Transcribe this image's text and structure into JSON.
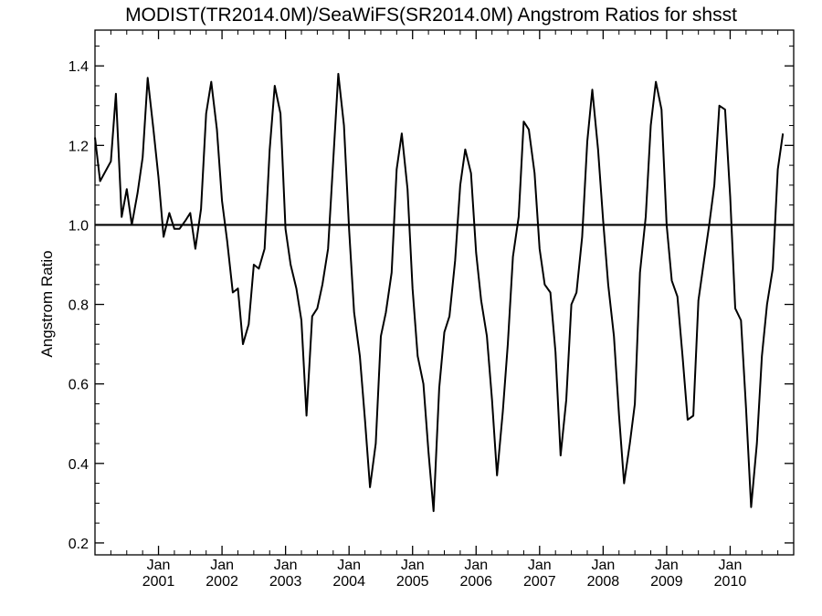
{
  "chart_data": {
    "type": "line",
    "title": "MODIST(TR2014.0M)/SeaWiFS(SR2014.0M)  Angstrom Ratios for shsst",
    "xlabel": "",
    "ylabel": "Angstrom Ratio",
    "ylim": [
      0.17,
      1.49
    ],
    "xlim": [
      2000.0,
      2011.0
    ],
    "grid": false,
    "reference_line": 1.0,
    "y_ticks": [
      "0.2",
      "0.4",
      "0.6",
      "0.8",
      "1.0",
      "1.2",
      "1.4"
    ],
    "x_ticks": [
      {
        "month": "Jan",
        "year": "2001"
      },
      {
        "month": "Jan",
        "year": "2002"
      },
      {
        "month": "Jan",
        "year": "2003"
      },
      {
        "month": "Jan",
        "year": "2004"
      },
      {
        "month": "Jan",
        "year": "2005"
      },
      {
        "month": "Jan",
        "year": "2006"
      },
      {
        "month": "Jan",
        "year": "2007"
      },
      {
        "month": "Jan",
        "year": "2008"
      },
      {
        "month": "Jan",
        "year": "2009"
      },
      {
        "month": "Jan",
        "year": "2010"
      }
    ],
    "series": [
      {
        "color": "#000000",
        "points": [
          [
            2000.0,
            1.22
          ],
          [
            2000.08,
            1.11
          ],
          [
            2000.25,
            1.16
          ],
          [
            2000.33,
            1.33
          ],
          [
            2000.42,
            1.02
          ],
          [
            2000.5,
            1.09
          ],
          [
            2000.58,
            1.0
          ],
          [
            2000.67,
            1.08
          ],
          [
            2000.75,
            1.17
          ],
          [
            2000.83,
            1.37
          ],
          [
            2000.92,
            1.24
          ],
          [
            2001.0,
            1.12
          ],
          [
            2001.08,
            0.97
          ],
          [
            2001.17,
            1.03
          ],
          [
            2001.25,
            0.99
          ],
          [
            2001.33,
            0.99
          ],
          [
            2001.42,
            1.01
          ],
          [
            2001.5,
            1.03
          ],
          [
            2001.58,
            0.94
          ],
          [
            2001.67,
            1.04
          ],
          [
            2001.75,
            1.28
          ],
          [
            2001.83,
            1.36
          ],
          [
            2001.92,
            1.24
          ],
          [
            2002.0,
            1.06
          ],
          [
            2002.08,
            0.96
          ],
          [
            2002.17,
            0.83
          ],
          [
            2002.25,
            0.84
          ],
          [
            2002.33,
            0.7
          ],
          [
            2002.42,
            0.75
          ],
          [
            2002.5,
            0.9
          ],
          [
            2002.58,
            0.89
          ],
          [
            2002.67,
            0.94
          ],
          [
            2002.75,
            1.19
          ],
          [
            2002.83,
            1.35
          ],
          [
            2002.92,
            1.28
          ],
          [
            2003.0,
            0.99
          ],
          [
            2003.08,
            0.9
          ],
          [
            2003.17,
            0.84
          ],
          [
            2003.25,
            0.76
          ],
          [
            2003.33,
            0.52
          ],
          [
            2003.42,
            0.77
          ],
          [
            2003.5,
            0.79
          ],
          [
            2003.58,
            0.85
          ],
          [
            2003.67,
            0.94
          ],
          [
            2003.75,
            1.16
          ],
          [
            2003.83,
            1.38
          ],
          [
            2003.92,
            1.25
          ],
          [
            2004.0,
            0.99
          ],
          [
            2004.08,
            0.78
          ],
          [
            2004.17,
            0.67
          ],
          [
            2004.25,
            0.51
          ],
          [
            2004.33,
            0.34
          ],
          [
            2004.42,
            0.45
          ],
          [
            2004.5,
            0.72
          ],
          [
            2004.58,
            0.78
          ],
          [
            2004.67,
            0.88
          ],
          [
            2004.75,
            1.14
          ],
          [
            2004.83,
            1.23
          ],
          [
            2004.92,
            1.09
          ],
          [
            2005.0,
            0.84
          ],
          [
            2005.08,
            0.67
          ],
          [
            2005.17,
            0.6
          ],
          [
            2005.25,
            0.43
          ],
          [
            2005.33,
            0.28
          ],
          [
            2005.42,
            0.59
          ],
          [
            2005.5,
            0.73
          ],
          [
            2005.58,
            0.77
          ],
          [
            2005.67,
            0.91
          ],
          [
            2005.75,
            1.1
          ],
          [
            2005.83,
            1.19
          ],
          [
            2005.92,
            1.13
          ],
          [
            2006.0,
            0.93
          ],
          [
            2006.08,
            0.81
          ],
          [
            2006.17,
            0.72
          ],
          [
            2006.25,
            0.56
          ],
          [
            2006.33,
            0.37
          ],
          [
            2006.42,
            0.53
          ],
          [
            2006.5,
            0.7
          ],
          [
            2006.58,
            0.92
          ],
          [
            2006.67,
            1.02
          ],
          [
            2006.75,
            1.26
          ],
          [
            2006.83,
            1.24
          ],
          [
            2006.92,
            1.13
          ],
          [
            2007.0,
            0.94
          ],
          [
            2007.08,
            0.85
          ],
          [
            2007.17,
            0.83
          ],
          [
            2007.25,
            0.68
          ],
          [
            2007.33,
            0.42
          ],
          [
            2007.42,
            0.56
          ],
          [
            2007.5,
            0.8
          ],
          [
            2007.58,
            0.83
          ],
          [
            2007.67,
            0.97
          ],
          [
            2007.75,
            1.21
          ],
          [
            2007.83,
            1.34
          ],
          [
            2007.92,
            1.19
          ],
          [
            2008.0,
            1.01
          ],
          [
            2008.08,
            0.85
          ],
          [
            2008.17,
            0.72
          ],
          [
            2008.25,
            0.52
          ],
          [
            2008.33,
            0.35
          ],
          [
            2008.42,
            0.45
          ],
          [
            2008.5,
            0.55
          ],
          [
            2008.58,
            0.88
          ],
          [
            2008.67,
            1.02
          ],
          [
            2008.75,
            1.25
          ],
          [
            2008.83,
            1.36
          ],
          [
            2008.92,
            1.29
          ],
          [
            2009.0,
            1.0
          ],
          [
            2009.08,
            0.86
          ],
          [
            2009.17,
            0.82
          ],
          [
            2009.25,
            0.67
          ],
          [
            2009.33,
            0.51
          ],
          [
            2009.42,
            0.52
          ],
          [
            2009.5,
            0.81
          ],
          [
            2009.58,
            0.9
          ],
          [
            2009.67,
            1.0
          ],
          [
            2009.75,
            1.1
          ],
          [
            2009.83,
            1.3
          ],
          [
            2009.92,
            1.29
          ],
          [
            2010.0,
            1.07
          ],
          [
            2010.08,
            0.79
          ],
          [
            2010.17,
            0.76
          ],
          [
            2010.25,
            0.54
          ],
          [
            2010.33,
            0.29
          ],
          [
            2010.42,
            0.45
          ],
          [
            2010.5,
            0.67
          ],
          [
            2010.58,
            0.8
          ],
          [
            2010.67,
            0.89
          ],
          [
            2010.75,
            1.14
          ],
          [
            2010.83,
            1.23
          ]
        ]
      }
    ]
  }
}
